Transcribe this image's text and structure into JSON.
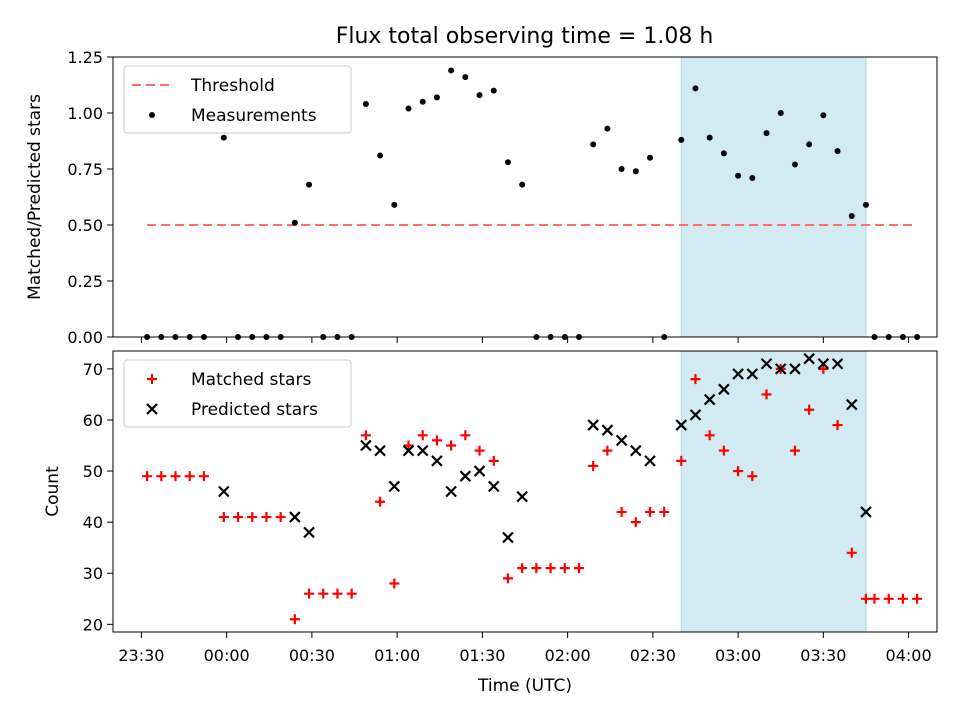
{
  "figure": {
    "title": "Flux total observing time = 1.08 h"
  },
  "chart_data": [
    {
      "type": "scatter",
      "panel": "top",
      "title": "Flux total observing time = 1.08 h",
      "xlabel": "",
      "ylabel": "Matched/Predicted stars",
      "xlim": [
        "23:20",
        "04:10"
      ],
      "ylim": [
        0,
        1.25
      ],
      "yticks": [
        "0.00",
        "0.25",
        "0.50",
        "0.75",
        "1.00",
        "1.25"
      ],
      "yticks_values": [
        0,
        0.25,
        0.5,
        0.75,
        1.0,
        1.25
      ],
      "shaded_region": {
        "from": "02:40",
        "to": "03:45",
        "color": "#add8e6"
      },
      "legend_position": "upper left",
      "series": [
        {
          "name": "Threshold",
          "style": "dashed-line",
          "color": "#ff6b6b",
          "points": [
            [
              "23:32",
              0.5
            ],
            [
              "04:03",
              0.5
            ]
          ]
        },
        {
          "name": "Measurements",
          "style": "dot",
          "color": "#000000",
          "points": [
            [
              "23:32",
              0
            ],
            [
              "23:37",
              0
            ],
            [
              "23:42",
              0
            ],
            [
              "23:47",
              0
            ],
            [
              "23:52",
              0
            ],
            [
              "23:59",
              0.89
            ],
            [
              "00:04",
              0
            ],
            [
              "00:09",
              0
            ],
            [
              "00:14",
              0
            ],
            [
              "00:19",
              0
            ],
            [
              "00:24",
              0.51
            ],
            [
              "00:29",
              0.68
            ],
            [
              "00:34",
              0
            ],
            [
              "00:39",
              0
            ],
            [
              "00:44",
              0
            ],
            [
              "00:49",
              1.04
            ],
            [
              "00:54",
              0.81
            ],
            [
              "00:59",
              0.59
            ],
            [
              "01:04",
              1.02
            ],
            [
              "01:09",
              1.05
            ],
            [
              "01:14",
              1.07
            ],
            [
              "01:19",
              1.19
            ],
            [
              "01:24",
              1.16
            ],
            [
              "01:29",
              1.08
            ],
            [
              "01:34",
              1.1
            ],
            [
              "01:39",
              0.78
            ],
            [
              "01:44",
              0.68
            ],
            [
              "01:49",
              0
            ],
            [
              "01:54",
              0
            ],
            [
              "01:59",
              0
            ],
            [
              "02:04",
              0
            ],
            [
              "02:09",
              0.86
            ],
            [
              "02:14",
              0.93
            ],
            [
              "02:19",
              0.75
            ],
            [
              "02:24",
              0.74
            ],
            [
              "02:29",
              0.8
            ],
            [
              "02:34",
              0
            ],
            [
              "02:40",
              0.88
            ],
            [
              "02:45",
              1.11
            ],
            [
              "02:50",
              0.89
            ],
            [
              "02:55",
              0.82
            ],
            [
              "03:00",
              0.72
            ],
            [
              "03:05",
              0.71
            ],
            [
              "03:10",
              0.91
            ],
            [
              "03:15",
              1.0
            ],
            [
              "03:20",
              0.77
            ],
            [
              "03:25",
              0.86
            ],
            [
              "03:30",
              0.99
            ],
            [
              "03:35",
              0.83
            ],
            [
              "03:40",
              0.54
            ],
            [
              "03:45",
              0.59
            ],
            [
              "03:48",
              0
            ],
            [
              "03:53",
              0
            ],
            [
              "03:58",
              0
            ],
            [
              "04:03",
              0
            ]
          ]
        }
      ]
    },
    {
      "type": "scatter",
      "panel": "bottom",
      "title": "",
      "xlabel": "Time (UTC)",
      "ylabel": "Count",
      "xlim": [
        "23:20",
        "04:10"
      ],
      "ylim": [
        18.5,
        73.5
      ],
      "xticks": [
        "23:30",
        "00:00",
        "00:30",
        "01:00",
        "01:30",
        "02:00",
        "02:30",
        "03:00",
        "03:30",
        "04:00"
      ],
      "yticks": [
        "20",
        "30",
        "40",
        "50",
        "60",
        "70"
      ],
      "yticks_values": [
        20,
        30,
        40,
        50,
        60,
        70
      ],
      "shaded_region": {
        "from": "02:40",
        "to": "03:45",
        "color": "#add8e6"
      },
      "legend_position": "upper left",
      "series": [
        {
          "name": "Matched stars",
          "style": "plus",
          "color": "#ff0000",
          "points": [
            [
              "23:32",
              49
            ],
            [
              "23:37",
              49
            ],
            [
              "23:42",
              49
            ],
            [
              "23:47",
              49
            ],
            [
              "23:52",
              49
            ],
            [
              "23:59",
              41
            ],
            [
              "00:04",
              41
            ],
            [
              "00:09",
              41
            ],
            [
              "00:14",
              41
            ],
            [
              "00:19",
              41
            ],
            [
              "00:24",
              21
            ],
            [
              "00:29",
              26
            ],
            [
              "00:34",
              26
            ],
            [
              "00:39",
              26
            ],
            [
              "00:44",
              26
            ],
            [
              "00:49",
              57
            ],
            [
              "00:54",
              44
            ],
            [
              "00:59",
              28
            ],
            [
              "01:04",
              55
            ],
            [
              "01:09",
              57
            ],
            [
              "01:14",
              56
            ],
            [
              "01:19",
              55
            ],
            [
              "01:24",
              57
            ],
            [
              "01:29",
              54
            ],
            [
              "01:34",
              52
            ],
            [
              "01:39",
              29
            ],
            [
              "01:44",
              31
            ],
            [
              "01:49",
              31
            ],
            [
              "01:54",
              31
            ],
            [
              "01:59",
              31
            ],
            [
              "02:04",
              31
            ],
            [
              "02:09",
              51
            ],
            [
              "02:14",
              54
            ],
            [
              "02:19",
              42
            ],
            [
              "02:24",
              40
            ],
            [
              "02:29",
              42
            ],
            [
              "02:34",
              42
            ],
            [
              "02:40",
              52
            ],
            [
              "02:45",
              68
            ],
            [
              "02:50",
              57
            ],
            [
              "02:55",
              54
            ],
            [
              "03:00",
              50
            ],
            [
              "03:05",
              49
            ],
            [
              "03:10",
              65
            ],
            [
              "03:15",
              70
            ],
            [
              "03:20",
              54
            ],
            [
              "03:25",
              62
            ],
            [
              "03:30",
              70
            ],
            [
              "03:35",
              59
            ],
            [
              "03:40",
              34
            ],
            [
              "03:45",
              25
            ],
            [
              "03:48",
              25
            ],
            [
              "03:53",
              25
            ],
            [
              "03:58",
              25
            ],
            [
              "04:03",
              25
            ]
          ]
        },
        {
          "name": "Predicted stars",
          "style": "cross",
          "color": "#000000",
          "points": [
            [
              "23:59",
              46
            ],
            [
              "00:24",
              41
            ],
            [
              "00:29",
              38
            ],
            [
              "00:49",
              55
            ],
            [
              "00:54",
              54
            ],
            [
              "00:59",
              47
            ],
            [
              "01:04",
              54
            ],
            [
              "01:09",
              54
            ],
            [
              "01:14",
              52
            ],
            [
              "01:19",
              46
            ],
            [
              "01:24",
              49
            ],
            [
              "01:29",
              50
            ],
            [
              "01:34",
              47
            ],
            [
              "01:39",
              37
            ],
            [
              "01:44",
              45
            ],
            [
              "02:09",
              59
            ],
            [
              "02:14",
              58
            ],
            [
              "02:19",
              56
            ],
            [
              "02:24",
              54
            ],
            [
              "02:29",
              52
            ],
            [
              "02:40",
              59
            ],
            [
              "02:45",
              61
            ],
            [
              "02:50",
              64
            ],
            [
              "02:55",
              66
            ],
            [
              "03:00",
              69
            ],
            [
              "03:05",
              69
            ],
            [
              "03:10",
              71
            ],
            [
              "03:15",
              70
            ],
            [
              "03:20",
              70
            ],
            [
              "03:25",
              72
            ],
            [
              "03:30",
              71
            ],
            [
              "03:35",
              71
            ],
            [
              "03:40",
              63
            ],
            [
              "03:45",
              42
            ]
          ]
        }
      ]
    }
  ]
}
